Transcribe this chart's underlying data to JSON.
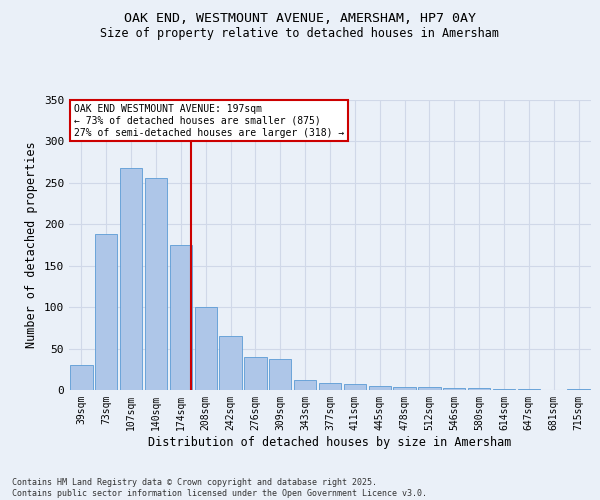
{
  "title_line1": "OAK END, WESTMOUNT AVENUE, AMERSHAM, HP7 0AY",
  "title_line2": "Size of property relative to detached houses in Amersham",
  "xlabel": "Distribution of detached houses by size in Amersham",
  "ylabel": "Number of detached properties",
  "categories": [
    "39sqm",
    "73sqm",
    "107sqm",
    "140sqm",
    "174sqm",
    "208sqm",
    "242sqm",
    "276sqm",
    "309sqm",
    "343sqm",
    "377sqm",
    "411sqm",
    "445sqm",
    "478sqm",
    "512sqm",
    "546sqm",
    "580sqm",
    "614sqm",
    "647sqm",
    "681sqm",
    "715sqm"
  ],
  "values": [
    30,
    188,
    268,
    256,
    175,
    100,
    65,
    40,
    38,
    12,
    9,
    7,
    5,
    4,
    4,
    2,
    2,
    1,
    1,
    0,
    1
  ],
  "bar_color": "#aec6e8",
  "bar_edgecolor": "#5b9bd5",
  "property_bar_index": 4,
  "annotation_text": "OAK END WESTMOUNT AVENUE: 197sqm\n← 73% of detached houses are smaller (875)\n27% of semi-detached houses are larger (318) →",
  "vline_color": "#cc0000",
  "annotation_box_edgecolor": "#cc0000",
  "annotation_box_facecolor": "#ffffff",
  "ylim": [
    0,
    350
  ],
  "yticks": [
    0,
    50,
    100,
    150,
    200,
    250,
    300,
    350
  ],
  "grid_color": "#d0d8e8",
  "bg_color": "#eaf0f8",
  "footer_line1": "Contains HM Land Registry data © Crown copyright and database right 2025.",
  "footer_line2": "Contains public sector information licensed under the Open Government Licence v3.0."
}
